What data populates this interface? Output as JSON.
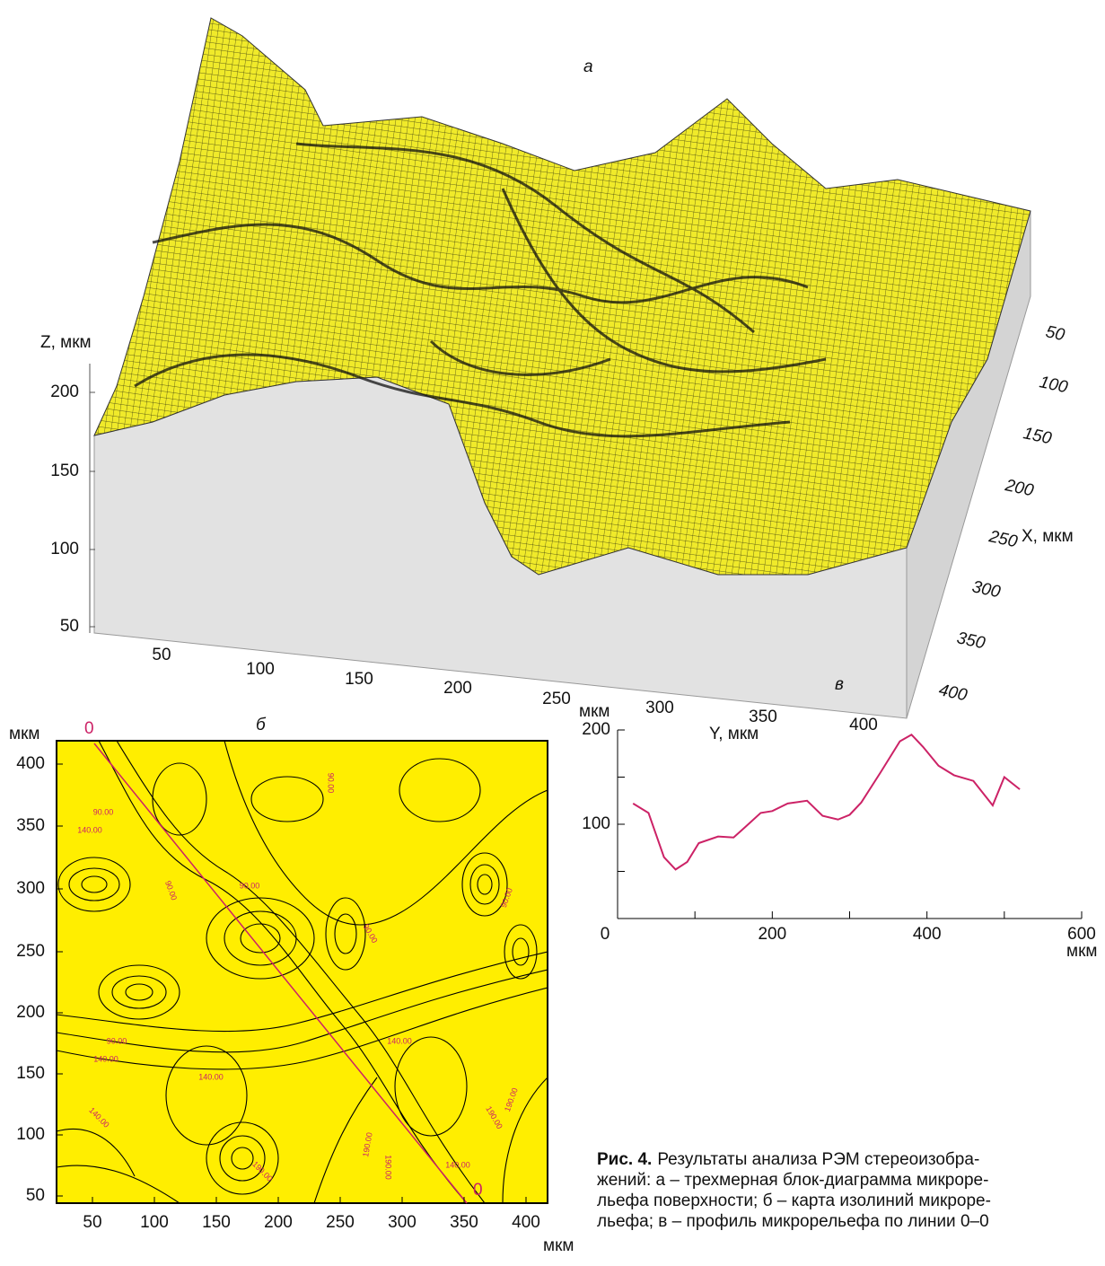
{
  "panel_a": {
    "letter": "а",
    "z_label": "Z, мкм",
    "z_ticks": [
      200,
      150,
      100,
      50
    ],
    "y_label": "Y, мкм",
    "y_ticks": [
      50,
      100,
      150,
      200,
      250,
      300,
      350,
      400
    ],
    "x_label": "X, мкм",
    "x_ticks": [
      50,
      100,
      150,
      200,
      250,
      300,
      350,
      400
    ]
  },
  "panel_b": {
    "letter": "б",
    "y_unit": "мкм",
    "x_unit": "мкм",
    "y_ticks": [
      400,
      350,
      300,
      250,
      200,
      150,
      100,
      50
    ],
    "x_ticks": [
      50,
      100,
      150,
      200,
      250,
      300,
      350,
      400
    ],
    "line_start": "0",
    "line_end": "0",
    "contour_labels": [
      "90.00",
      "90.00",
      "90.00",
      "90.00",
      "90.00",
      "90.00",
      "90.00",
      "140.00",
      "140.00",
      "140.00",
      "140.00",
      "140.00",
      "140.00",
      "190.00",
      "190.00",
      "190.00",
      "190.00",
      "190.00"
    ]
  },
  "chart_data": {
    "type": "line",
    "letter": "в",
    "y_unit": "мкм",
    "x_unit": "мкм",
    "color": "#cc2266",
    "x": [
      20,
      40,
      60,
      75,
      90,
      105,
      130,
      150,
      165,
      185,
      200,
      220,
      245,
      265,
      285,
      300,
      315,
      340,
      365,
      380,
      395,
      415,
      435,
      460,
      485,
      500,
      520
    ],
    "values": [
      122,
      112,
      65,
      52,
      60,
      80,
      87,
      86,
      97,
      112,
      114,
      122,
      125,
      109,
      105,
      110,
      123,
      155,
      188,
      195,
      182,
      162,
      152,
      146,
      120,
      150,
      137
    ],
    "xlim": [
      0,
      600
    ],
    "ylim": [
      0,
      200
    ],
    "xticks": [
      0,
      200,
      400,
      600
    ],
    "xminorticks": [
      100,
      300,
      500
    ],
    "yticks": [
      100,
      200
    ],
    "yminorticks": [
      50,
      150
    ]
  },
  "caption": {
    "label": "Рис. 4.",
    "lines": [
      "Результаты анализа РЭМ стереоизобра-",
      "жений: а – трехмерная блок-диаграмма микроре-",
      "льефа поверхности; б – карта изолиний микроре-",
      "льефа; в – профиль микрорельефа по линии 0–0"
    ]
  }
}
